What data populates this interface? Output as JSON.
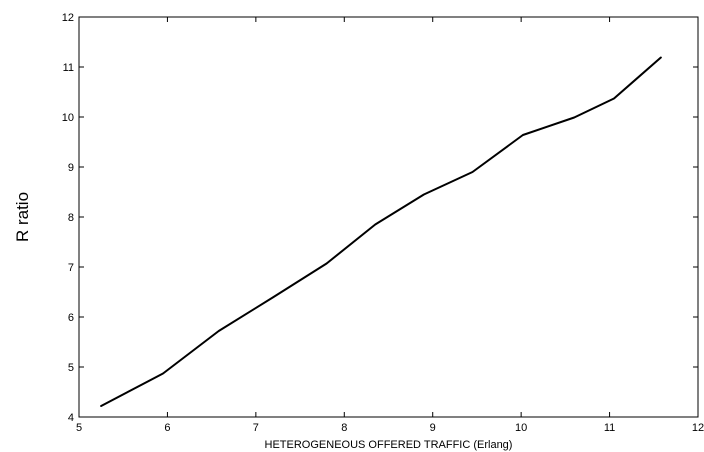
{
  "chart_data": {
    "type": "line",
    "title": "",
    "xlabel": "HETEROGENEOUS OFFERED TRAFFIC (Erlang)",
    "ylabel": "R ratio",
    "xlim": [
      5,
      12
    ],
    "ylim": [
      4,
      12
    ],
    "xticks": [
      "5",
      "6",
      "7",
      "8",
      "9",
      "10",
      "11",
      "12"
    ],
    "yticks": [
      "4",
      "5",
      "6",
      "7",
      "8",
      "9",
      "10",
      "11",
      "12"
    ],
    "grid": false,
    "legend": "none",
    "series": [
      {
        "color": "#000000",
        "x": [
          5.25,
          5.95,
          6.58,
          7.2,
          7.8,
          8.35,
          8.9,
          9.45,
          10.02,
          10.6,
          11.05,
          11.58
        ],
        "y": [
          4.22,
          4.87,
          5.72,
          6.4,
          7.07,
          7.85,
          8.45,
          8.9,
          9.64,
          9.99,
          10.37,
          11.19
        ]
      }
    ]
  }
}
